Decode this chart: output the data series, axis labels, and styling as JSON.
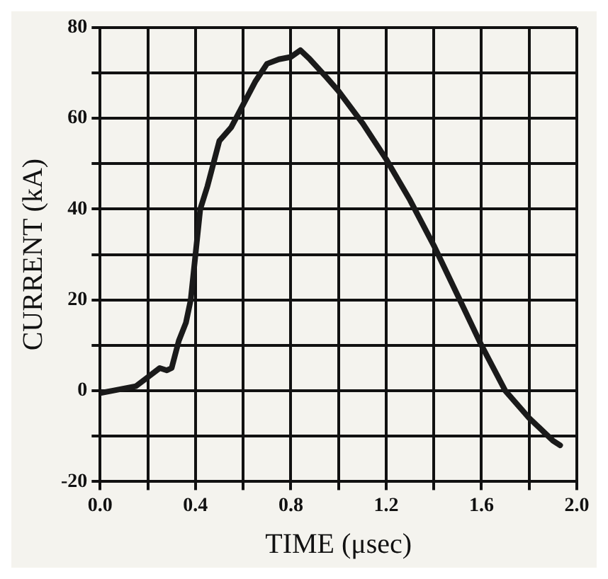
{
  "chart_data": {
    "type": "line",
    "xlabel": "TIME (μsec)",
    "ylabel": "CURRENT (kA)",
    "xlim": [
      0,
      2.0
    ],
    "ylim": [
      -20,
      80
    ],
    "xticks": [
      {
        "value": 0,
        "label": "0.0"
      },
      {
        "value": 0.2,
        "label": null
      },
      {
        "value": 0.4,
        "label": "0.4"
      },
      {
        "value": 0.6,
        "label": null
      },
      {
        "value": 0.8,
        "label": "0.8"
      },
      {
        "value": 1.0,
        "label": null
      },
      {
        "value": 1.2,
        "label": "1.2"
      },
      {
        "value": 1.4,
        "label": null
      },
      {
        "value": 1.6,
        "label": "1.6"
      },
      {
        "value": 1.8,
        "label": null
      },
      {
        "value": 2.0,
        "label": "2.0"
      }
    ],
    "yticks": [
      -20,
      {
        "value": -10,
        "label": null
      },
      0,
      {
        "value": 10,
        "label": null
      },
      20,
      {
        "value": 30,
        "label": null
      },
      40,
      {
        "value": 50,
        "label": null
      },
      60,
      {
        "value": 70,
        "label": null
      },
      80
    ],
    "grid": true,
    "legend": false,
    "marker": "none",
    "line_style": "solid",
    "series": [
      {
        "color": "#1a1a1a",
        "x": [
          0.0,
          0.05,
          0.1,
          0.15,
          0.2,
          0.25,
          0.28,
          0.3,
          0.33,
          0.36,
          0.38,
          0.4,
          0.42,
          0.45,
          0.5,
          0.55,
          0.6,
          0.65,
          0.7,
          0.75,
          0.8,
          0.84,
          0.88,
          0.95,
          1.0,
          1.1,
          1.2,
          1.3,
          1.4,
          1.5,
          1.6,
          1.7,
          1.8,
          1.9,
          1.93
        ],
        "values": [
          -0.5,
          0,
          0.5,
          1,
          3,
          5,
          4.5,
          5,
          11,
          15,
          20,
          30,
          40,
          45,
          55,
          58,
          63,
          68,
          72,
          73,
          73.5,
          75,
          73,
          69,
          66,
          59,
          51,
          42,
          32,
          21,
          10,
          0,
          -6,
          -11,
          -12
        ]
      }
    ]
  }
}
